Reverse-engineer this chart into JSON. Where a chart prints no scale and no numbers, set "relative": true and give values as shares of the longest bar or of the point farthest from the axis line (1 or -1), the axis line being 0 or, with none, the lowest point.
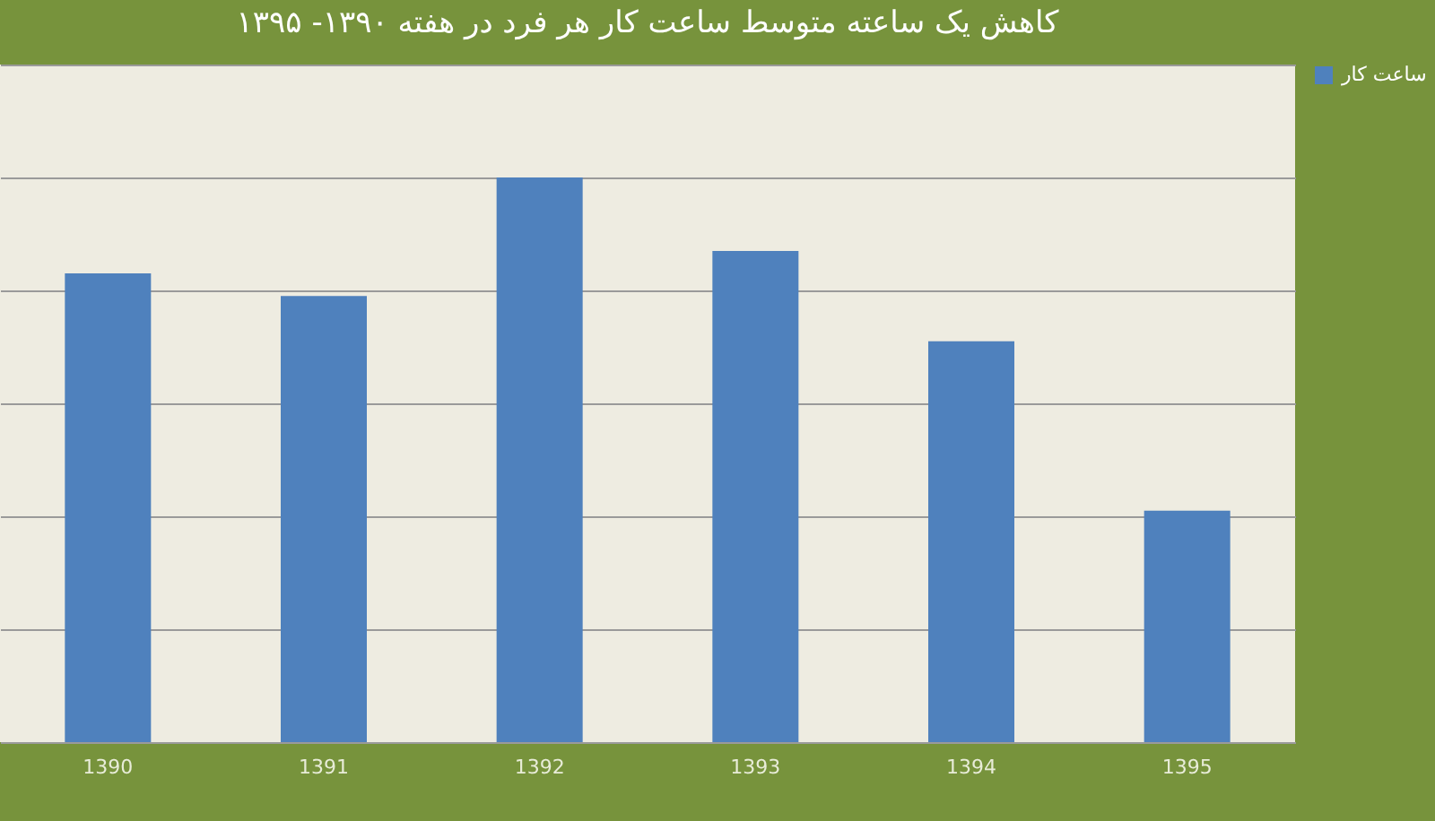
{
  "chart_data": {
    "type": "bar",
    "title": "کاهش یک ساعته متوسط ساعت کار هر فرد در هفته ۱۳۹۰- ۱۳۹۵",
    "categories": [
      "1390",
      "1391",
      "1392",
      "1393",
      "1394",
      "1395"
    ],
    "series": [
      {
        "name": "ساعت کار",
        "color": "#4f81bd",
        "values": [
          0.83,
          0.79,
          1,
          0.87,
          0.71,
          0.41
        ]
      }
    ],
    "relative": true,
    "grid": "y",
    "legend": "right"
  }
}
